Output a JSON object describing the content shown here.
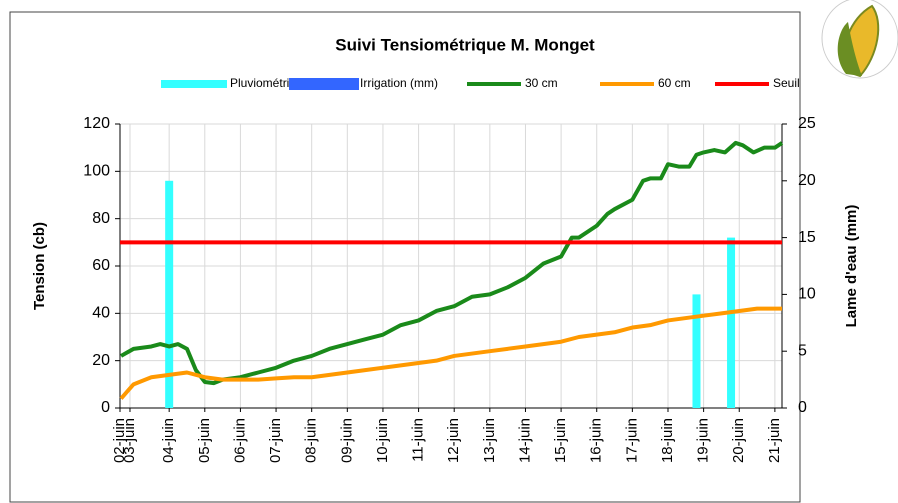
{
  "chart_data": {
    "type": "combo",
    "title": "Suivi Tensiométrique M. Monget",
    "ylabel": "Tension (cb)",
    "y2label": "Lame d'eau (mm)",
    "xlim": [
      2.62,
      21.2
    ],
    "ylim": [
      0,
      120
    ],
    "yticks": [
      0,
      20,
      40,
      60,
      80,
      100,
      120
    ],
    "y2lim": [
      0,
      25
    ],
    "y2ticks": [
      0,
      5,
      10,
      15,
      20,
      25
    ],
    "xticks": [
      {
        "value": 2.62,
        "label": "02-juin"
      },
      {
        "value": 2.9,
        "label": "03-juin"
      },
      {
        "value": 4,
        "label": "04-juin"
      },
      {
        "value": 5,
        "label": "05-juin"
      },
      {
        "value": 6,
        "label": "06-juin"
      },
      {
        "value": 7,
        "label": "07-juin"
      },
      {
        "value": 8,
        "label": "08-juin"
      },
      {
        "value": 9,
        "label": "09-juin"
      },
      {
        "value": 10,
        "label": "10-juin"
      },
      {
        "value": 11,
        "label": "11-juin"
      },
      {
        "value": 12,
        "label": "12-juin"
      },
      {
        "value": 13,
        "label": "13-juin"
      },
      {
        "value": 14,
        "label": "14-juin"
      },
      {
        "value": 15,
        "label": "15-juin"
      },
      {
        "value": 16,
        "label": "16-juin"
      },
      {
        "value": 17,
        "label": "17-juin"
      },
      {
        "value": 18,
        "label": "18-juin"
      },
      {
        "value": 19,
        "label": "19-juin"
      },
      {
        "value": 20,
        "label": "20-juin"
      },
      {
        "value": 21,
        "label": "21-juin"
      }
    ],
    "grid": true,
    "series": [
      {
        "name": "Pluviométrie (mm)",
        "kind": "bar",
        "axis": "y2",
        "color": "#33ffff",
        "x": [
          4.0,
          18.8,
          19.77
        ],
        "values": [
          20,
          10,
          15
        ]
      },
      {
        "name": "Irrigation (mm)",
        "kind": "bar",
        "axis": "y2",
        "color": "#3366ff",
        "x": [],
        "values": []
      },
      {
        "name": "30 cm",
        "kind": "line",
        "color": "#1a8a1a",
        "x": [
          2.65,
          3.0,
          3.5,
          3.75,
          4.0,
          4.25,
          4.5,
          4.75,
          5.0,
          5.25,
          5.5,
          6.0,
          6.5,
          7.0,
          7.5,
          8.0,
          8.5,
          9.0,
          9.5,
          10.0,
          10.5,
          11.0,
          11.5,
          12.0,
          12.5,
          13.0,
          13.5,
          14.0,
          14.5,
          15.0,
          15.3,
          15.5,
          16.0,
          16.3,
          16.5,
          17.0,
          17.3,
          17.5,
          17.8,
          18.0,
          18.3,
          18.6,
          18.8,
          19.0,
          19.3,
          19.6,
          19.9,
          20.1,
          20.4,
          20.7,
          21.0,
          21.2
        ],
        "values": [
          22,
          25,
          26,
          27,
          26,
          27,
          25,
          16,
          11,
          10.5,
          12,
          13,
          15,
          17,
          20,
          22,
          25,
          27,
          29,
          31,
          35,
          37,
          41,
          43,
          47,
          48,
          51,
          55,
          61,
          64,
          72,
          72,
          77,
          82,
          84,
          88,
          96,
          97,
          97,
          103,
          102,
          102,
          107,
          108,
          109,
          108,
          112,
          111,
          108,
          110,
          110,
          112
        ]
      },
      {
        "name": "60 cm",
        "kind": "line",
        "color": "#ff9900",
        "x": [
          2.65,
          3.0,
          3.5,
          4.0,
          4.5,
          5.0,
          5.5,
          6.0,
          6.5,
          7.0,
          7.5,
          8.0,
          8.5,
          9.0,
          9.5,
          10.0,
          10.5,
          11.0,
          11.5,
          12.0,
          12.5,
          13.0,
          13.5,
          14.0,
          14.5,
          15.0,
          15.5,
          16.0,
          16.5,
          17.0,
          17.5,
          18.0,
          18.5,
          19.0,
          19.5,
          20.0,
          20.5,
          21.0,
          21.2
        ],
        "values": [
          4,
          10,
          13,
          14,
          15,
          13,
          12,
          12,
          12,
          12.5,
          13,
          13,
          14,
          15,
          16,
          17,
          18,
          19,
          20,
          22,
          23,
          24,
          25,
          26,
          27,
          28,
          30,
          31,
          32,
          34,
          35,
          37,
          38,
          39,
          40,
          41,
          42,
          42,
          42
        ]
      },
      {
        "name": "Seuil",
        "kind": "line",
        "color": "#ff0000",
        "x": [
          2.62,
          21.2
        ],
        "values": [
          70,
          70
        ]
      }
    ]
  }
}
